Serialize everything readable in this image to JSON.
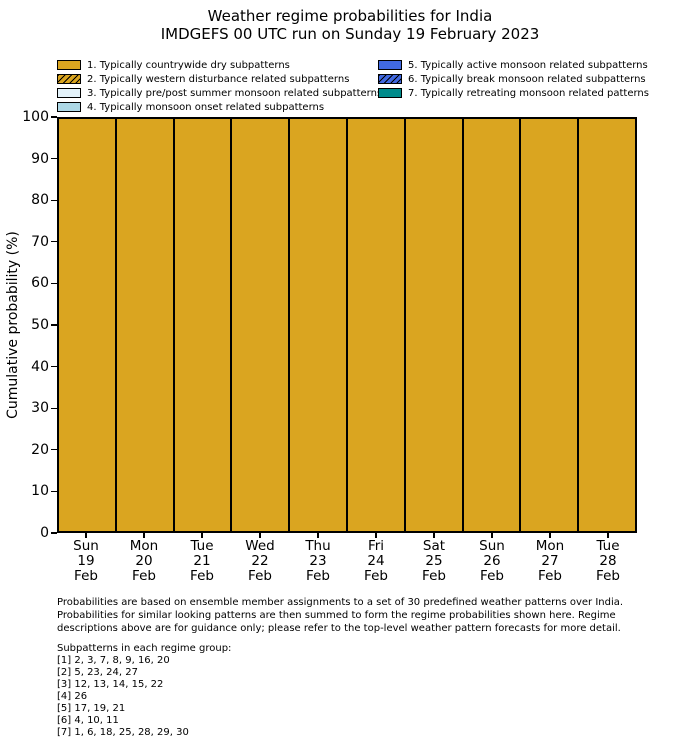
{
  "title": {
    "line1": "Weather regime probabilities for India",
    "line2": "IMDGEFS 00 UTC run on Sunday 19 February 2023"
  },
  "chart_data": {
    "type": "bar",
    "stacked": true,
    "title": "Weather regime probabilities for India",
    "subtitle": "IMDGEFS 00 UTC run on Sunday 19 February 2023",
    "xlabel": "",
    "ylabel": "Cumulative probability (%)",
    "ylim": [
      0,
      100
    ],
    "yticks": [
      0,
      10,
      20,
      30,
      40,
      50,
      60,
      70,
      80,
      90,
      100
    ],
    "grid": false,
    "legend_position": "top, two columns, no frame",
    "bar_edge_color": "#000000",
    "categories": [
      "Sun 19 Feb",
      "Mon 20 Feb",
      "Tue 21 Feb",
      "Wed 22 Feb",
      "Thu 23 Feb",
      "Fri 24 Feb",
      "Sat 25 Feb",
      "Sun 26 Feb",
      "Mon 27 Feb",
      "Tue 28 Feb"
    ],
    "xticklabels": [
      {
        "day": "Sun",
        "date": "19",
        "month": "Feb"
      },
      {
        "day": "Mon",
        "date": "20",
        "month": "Feb"
      },
      {
        "day": "Tue",
        "date": "21",
        "month": "Feb"
      },
      {
        "day": "Wed",
        "date": "22",
        "month": "Feb"
      },
      {
        "day": "Thu",
        "date": "23",
        "month": "Feb"
      },
      {
        "day": "Fri",
        "date": "24",
        "month": "Feb"
      },
      {
        "day": "Sat",
        "date": "25",
        "month": "Feb"
      },
      {
        "day": "Sun",
        "date": "26",
        "month": "Feb"
      },
      {
        "day": "Mon",
        "date": "27",
        "month": "Feb"
      },
      {
        "day": "Tue",
        "date": "28",
        "month": "Feb"
      }
    ],
    "series": [
      {
        "name": "1. Typically countrywide dry subpatterns",
        "color": "#DAA520",
        "hatch": false,
        "values": [
          100,
          100,
          100,
          100,
          100,
          100,
          100,
          100,
          100,
          100
        ]
      },
      {
        "name": "2. Typically western disturbance related subpatterns",
        "color": "#DAA520",
        "hatch": true,
        "values": [
          0,
          0,
          0,
          0,
          0,
          0,
          0,
          0,
          0,
          0
        ]
      },
      {
        "name": "3. Typically pre/post summer monsoon related subpatterns",
        "color": "#E3F2FA",
        "hatch": false,
        "values": [
          0,
          0,
          0,
          0,
          0,
          0,
          0,
          0,
          0,
          0
        ]
      },
      {
        "name": "4. Typically monsoon onset related subpatterns",
        "color": "#ADD8E6",
        "hatch": false,
        "values": [
          0,
          0,
          0,
          0,
          0,
          0,
          0,
          0,
          0,
          0
        ]
      },
      {
        "name": "5. Typically active monsoon related subpatterns",
        "color": "#4169E1",
        "hatch": false,
        "values": [
          0,
          0,
          0,
          0,
          0,
          0,
          0,
          0,
          0,
          0
        ]
      },
      {
        "name": "6. Typically break monsoon related subpatterns",
        "color": "#4169E1",
        "hatch": true,
        "values": [
          0,
          0,
          0,
          0,
          0,
          0,
          0,
          0,
          0,
          0
        ]
      },
      {
        "name": "7. Typically retreating monsoon related patterns",
        "color": "#008B8B",
        "hatch": false,
        "values": [
          0,
          0,
          0,
          0,
          0,
          0,
          0,
          0,
          0,
          0
        ]
      }
    ]
  },
  "footer": {
    "lines": [
      "Probabilities are based on ensemble member assignments to a set of 30 predefined weather patterns over India.",
      "Probabilities for similar looking patterns are then summed to form the regime probabilities shown here. Regime",
      "descriptions above are for guidance only; please refer to the top-level weather pattern forecasts for more detail."
    ]
  },
  "subpatterns": {
    "header": "Subpatterns in each regime group:",
    "groups": [
      "[1] 2, 3, 7, 8, 9, 16, 20",
      "[2] 5, 23, 24, 27",
      "[3] 12, 13, 14, 15, 22",
      "[4] 26",
      "[5] 17, 19, 21",
      "[6] 4, 10, 11",
      "[7] 1, 6, 18, 25, 28, 29, 30"
    ]
  }
}
